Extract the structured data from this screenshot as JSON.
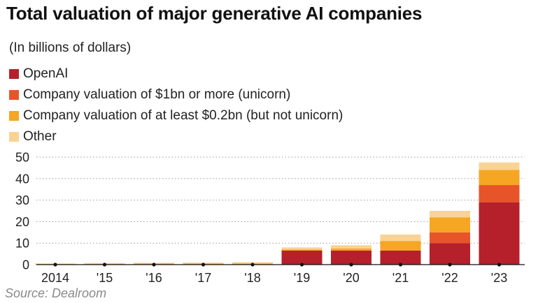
{
  "chart_data": {
    "type": "bar",
    "stacked": true,
    "title": "Total valuation of major generative AI companies",
    "subtitle": "(In billions of dollars)",
    "source": "Source: Dealroom",
    "categories": [
      "2014",
      "'15",
      "'16",
      "'17",
      "'18",
      "'19",
      "'20",
      "'21",
      "'22",
      "'23"
    ],
    "series": [
      {
        "name": "OpenAI",
        "color": "#b5202a",
        "values": [
          0,
          0,
          0,
          0,
          0,
          6.5,
          6.5,
          6.5,
          10,
          29
        ]
      },
      {
        "name": "Company valuation of $1bn or more (unicorn)",
        "color": "#e8542a",
        "values": [
          0,
          0,
          0,
          0,
          0,
          0,
          0,
          0,
          5,
          8
        ]
      },
      {
        "name": "Company valuation of at least $0.2bn (but not unicorn)",
        "color": "#f5a623",
        "values": [
          0.3,
          0.4,
          0.5,
          0.5,
          0.5,
          0.5,
          1,
          4.5,
          7,
          7
        ]
      },
      {
        "name": "Other",
        "color": "#f9d394",
        "values": [
          0.2,
          0.3,
          0.3,
          0.4,
          0.6,
          1,
          1.5,
          3,
          3,
          3.5
        ]
      }
    ],
    "ylim": [
      0,
      50
    ],
    "yticks": [
      0,
      10,
      20,
      30,
      40,
      50
    ],
    "xlabel": "",
    "ylabel": "",
    "legend": "top-left",
    "grid": "horizontal dotted"
  }
}
